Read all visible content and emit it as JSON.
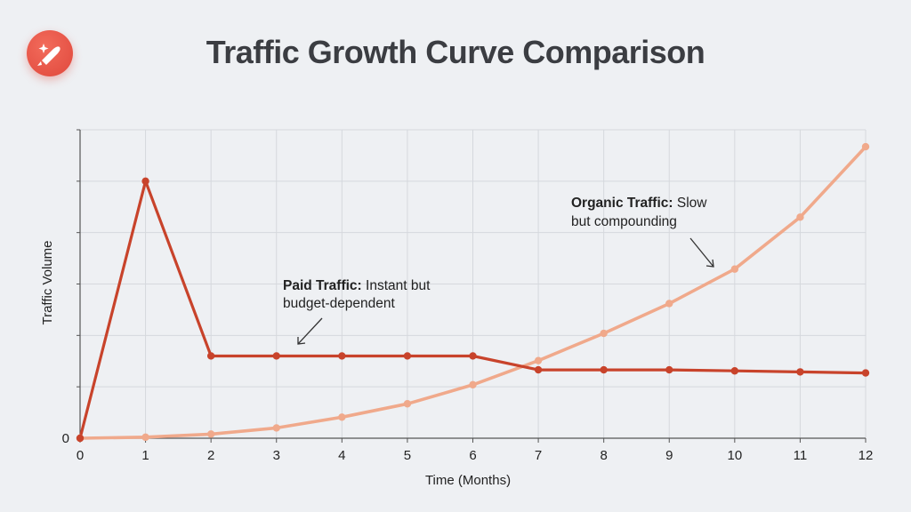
{
  "title": "Traffic Growth Curve Comparison",
  "logo": {
    "icon": "sparkle-rocket-icon"
  },
  "colors": {
    "paid": "#c8432b",
    "organic": "#f0a98b",
    "grid": "#d5d8dd",
    "axis": "#555555"
  },
  "chart_data": {
    "type": "line",
    "title": "Traffic Growth Curve Comparison",
    "xlabel": "Time (Months)",
    "ylabel": "Traffic Volume",
    "x": [
      0,
      1,
      2,
      3,
      4,
      5,
      6,
      7,
      8,
      9,
      10,
      11,
      12
    ],
    "xlim": [
      0,
      12
    ],
    "ylim": [
      0,
      6
    ],
    "y_tick_labels": [
      "0"
    ],
    "grid": true,
    "series": [
      {
        "key": "paid",
        "values": [
          0,
          5.0,
          1.6,
          1.6,
          1.6,
          1.6,
          1.6,
          1.33,
          1.33,
          1.33,
          1.31,
          1.29,
          1.27
        ]
      },
      {
        "key": "organic",
        "values": [
          0,
          0.02,
          0.08,
          0.2,
          0.41,
          0.67,
          1.04,
          1.51,
          2.04,
          2.62,
          3.29,
          4.3,
          5.67
        ]
      }
    ],
    "annotations": [
      {
        "bold": "Paid Traffic:",
        "text": " Instant but",
        "line2": "budget-dependent"
      },
      {
        "bold": "Organic Traffic:",
        "text": " Slow",
        "line2": "but compounding"
      }
    ]
  }
}
